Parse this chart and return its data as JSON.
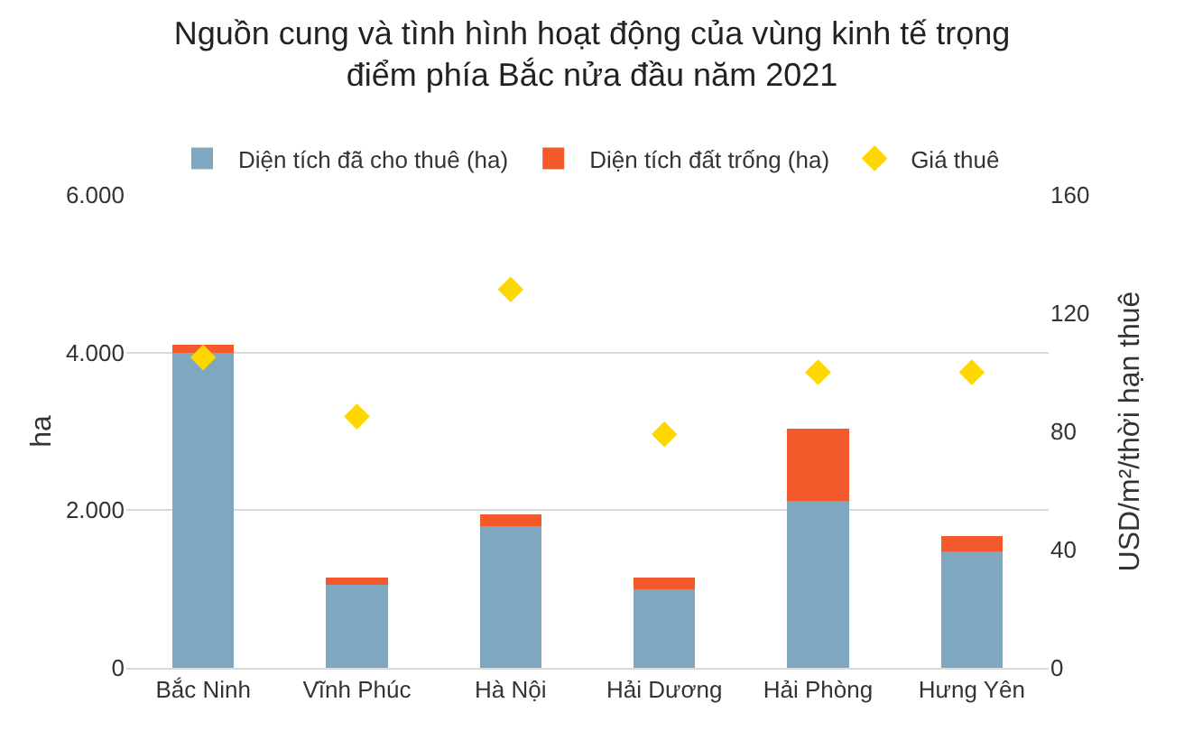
{
  "chart_data": {
    "type": "bar",
    "title": "Nguồn cung và tình hình hoạt động của vùng kinh tế trọng\nđiểm phía Bắc nửa đầu năm 2021",
    "ylabel": "ha",
    "y2label": "USD/m²/thời hạn thuê",
    "categories": [
      "Bắc Ninh",
      "Vĩnh Phúc",
      "Hà Nội",
      "Hải Dương",
      "Hải Phòng",
      "Hưng Yên"
    ],
    "stacked": true,
    "series": [
      {
        "name": "Diện tích đã cho thuê (ha)",
        "color": "#7fa7bf",
        "values": [
          4000,
          1050,
          1800,
          1000,
          2120,
          1480
        ]
      },
      {
        "name": "Diện tích đất trống (ha)",
        "color": "#f4592b",
        "values": [
          100,
          100,
          150,
          150,
          920,
          190
        ]
      },
      {
        "name": "Giá thuê",
        "type": "scatter",
        "axis": "y2",
        "marker": "diamond",
        "color": "#ffd700",
        "values": [
          105,
          85,
          128,
          79,
          100,
          100
        ]
      }
    ],
    "ylim": [
      0,
      6000
    ],
    "yticks": [
      {
        "value": 0,
        "label": "0"
      },
      {
        "value": 2000,
        "label": "2.000"
      },
      {
        "value": 4000,
        "label": "4.000"
      },
      {
        "value": 6000,
        "label": "6.000"
      }
    ],
    "y2lim": [
      0,
      160
    ],
    "y2ticks": [
      0,
      40,
      80,
      120,
      160
    ],
    "grid": "y",
    "legend": "top"
  }
}
